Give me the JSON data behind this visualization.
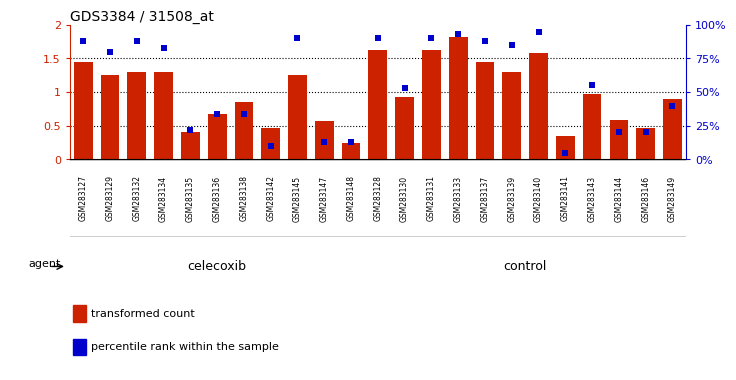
{
  "title": "GDS3384 / 31508_at",
  "samples": [
    "GSM283127",
    "GSM283129",
    "GSM283132",
    "GSM283134",
    "GSM283135",
    "GSM283136",
    "GSM283138",
    "GSM283142",
    "GSM283145",
    "GSM283147",
    "GSM283148",
    "GSM283128",
    "GSM283130",
    "GSM283131",
    "GSM283133",
    "GSM283137",
    "GSM283139",
    "GSM283140",
    "GSM283141",
    "GSM283143",
    "GSM283144",
    "GSM283146",
    "GSM283149"
  ],
  "transformed_count": [
    1.45,
    1.25,
    1.3,
    1.3,
    0.4,
    0.68,
    0.85,
    0.47,
    1.25,
    0.57,
    0.25,
    1.62,
    0.93,
    1.62,
    1.82,
    1.45,
    1.3,
    1.58,
    0.35,
    0.97,
    0.58,
    0.47,
    0.9
  ],
  "percentile_rank": [
    88,
    80,
    88,
    83,
    22,
    34,
    34,
    10,
    90,
    13,
    13,
    90,
    53,
    90,
    93,
    88,
    85,
    95,
    5,
    55,
    20,
    20,
    40
  ],
  "celecoxib_count": 11,
  "control_count": 12,
  "ylim_left": [
    0,
    2
  ],
  "ylim_right": [
    0,
    100
  ],
  "yticks_left": [
    0,
    0.5,
    1.0,
    1.5,
    2.0
  ],
  "ytick_labels_left": [
    "0",
    "0.5",
    "1",
    "1.5",
    "2"
  ],
  "yticks_right": [
    0,
    25,
    50,
    75,
    100
  ],
  "ytick_labels_right": [
    "0%",
    "25%",
    "50%",
    "75%",
    "100%"
  ],
  "bar_color": "#cc2200",
  "dot_color": "#0000cc",
  "celecoxib_color": "#aaeebb",
  "control_color": "#44dd66",
  "tickbg_color": "#cccccc",
  "agent_label": "agent",
  "celecoxib_label": "celecoxib",
  "control_label": "control",
  "legend_bar": "transformed count",
  "legend_dot": "percentile rank within the sample",
  "grid_values": [
    0.5,
    1.0,
    1.5
  ]
}
